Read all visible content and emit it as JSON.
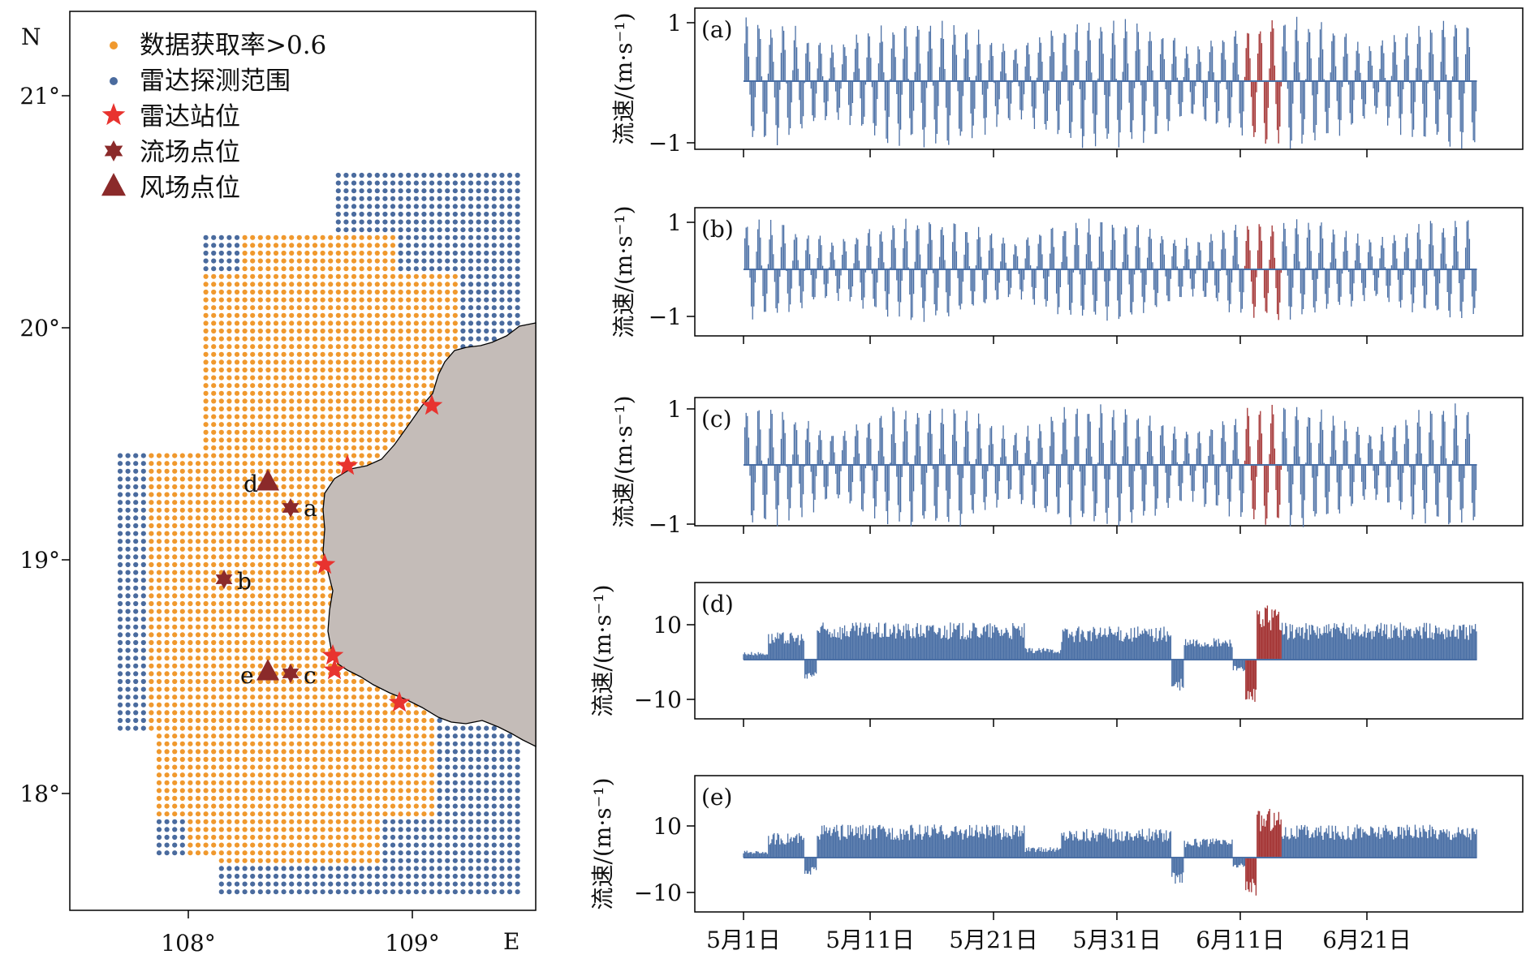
{
  "colors": {
    "orange": "#F0992E",
    "blue": "#4A6B9E",
    "red_star": "#E8332F",
    "dark_red": "#8B2A2A",
    "land": "#C4BCB8",
    "series_blue": "#4A6FA5",
    "series_red": "#A33232"
  },
  "map": {
    "north_label": "N",
    "east_label": "E",
    "lat_ticks": [
      "21°",
      "20°",
      "19°",
      "18°"
    ],
    "lon_ticks": [
      "108°",
      "109°"
    ],
    "legend": [
      {
        "label": "数据获取率>0.6",
        "marker": "orange-dot"
      },
      {
        "label": "雷达探测范围",
        "marker": "blue-dot"
      },
      {
        "label": "雷达站位",
        "marker": "red-star"
      },
      {
        "label": "流场点位",
        "marker": "dark-red-star6"
      },
      {
        "label": "风场点位",
        "marker": "dark-red-triangle"
      }
    ],
    "point_labels": [
      "a",
      "b",
      "c",
      "d",
      "e"
    ]
  },
  "chart_data": [
    {
      "type": "line",
      "panel": "(a)",
      "ylabel": "流速/(m·s⁻¹)",
      "yticks": [
        "1",
        "−1"
      ],
      "ylim": [
        -1,
        1
      ],
      "x_range": [
        "5月1日",
        "6月30日"
      ],
      "highlight_range": [
        "6月11日",
        "6月14日"
      ],
      "envelope_amplitude": 0.8,
      "series": [
        {
          "values_max": [
            0.9,
            1.0,
            1.05
          ],
          "values_min": [
            -0.85,
            -1.0,
            -1.0
          ]
        }
      ]
    },
    {
      "type": "line",
      "panel": "(b)",
      "ylabel": "流速/(m·s⁻¹)",
      "yticks": [
        "1",
        "−1"
      ],
      "ylim": [
        -1,
        1
      ],
      "x_range": [
        "5月1日",
        "6月30日"
      ],
      "highlight_range": [
        "6月11日",
        "6月14日"
      ],
      "envelope_amplitude": 0.8,
      "series": [
        {
          "values_max": [
            1.0,
            1.1
          ],
          "values_min": [
            -1.2,
            -1.2
          ]
        }
      ]
    },
    {
      "type": "line",
      "panel": "(c)",
      "ylabel": "流速/(m·s⁻¹)",
      "yticks": [
        "1",
        "−1"
      ],
      "ylim": [
        -1,
        1
      ],
      "x_range": [
        "5月1日",
        "6月30日"
      ],
      "highlight_range": [
        "6月11日",
        "6月14日"
      ],
      "envelope_amplitude": 0.9,
      "series": [
        {
          "values_max": [
            1.0,
            1.1
          ],
          "values_min": [
            -1.0,
            -1.0
          ]
        }
      ]
    },
    {
      "type": "area",
      "panel": "(d)",
      "ylabel": "流速/(m·s⁻¹)",
      "yticks": [
        "10",
        "−10"
      ],
      "ylim": [
        -10,
        10
      ],
      "x_range": [
        "5月1日",
        "6月30日"
      ],
      "highlight_range": [
        "6月11日",
        "6月14日"
      ]
    },
    {
      "type": "area",
      "panel": "(e)",
      "ylabel": "流速/(m·s⁻¹)",
      "yticks": [
        "10",
        "−10"
      ],
      "ylim": [
        -10,
        10
      ],
      "x_range": [
        "5月1日",
        "6月30日"
      ],
      "highlight_range": [
        "6月11日",
        "6月14日"
      ]
    }
  ],
  "x_tick_labels": [
    "5月1日",
    "5月11日",
    "5月21日",
    "5月31日",
    "6月11日",
    "6月21日"
  ]
}
